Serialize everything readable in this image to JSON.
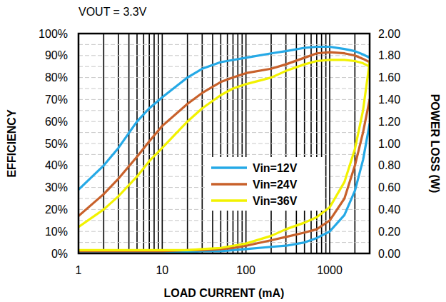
{
  "chart_data": {
    "type": "line",
    "title": "VOUT = 3.3V",
    "x_label": "LOAD CURRENT  (mA)",
    "y_label": "EFFICIENCY",
    "y2_label": "POWER LOSS (W)",
    "log": "x",
    "grid": true,
    "legend": "center",
    "x": [
      1,
      2,
      3,
      5,
      7,
      10,
      20,
      30,
      50,
      70,
      100,
      200,
      300,
      500,
      700,
      1000,
      1500,
      2000,
      2500,
      3000
    ],
    "xlim": [
      1,
      3000
    ],
    "xticks": [
      1,
      10,
      100,
      1000
    ],
    "ylim": [
      0,
      100
    ],
    "yticks": [
      {
        "value": 0,
        "label": "0%"
      },
      {
        "value": 10,
        "label": "10%"
      },
      {
        "value": 20,
        "label": "20%"
      },
      {
        "value": 30,
        "label": "30%"
      },
      {
        "value": 40,
        "label": "40%"
      },
      {
        "value": 50,
        "label": "50%"
      },
      {
        "value": 60,
        "label": "60%"
      },
      {
        "value": 70,
        "label": "70%"
      },
      {
        "value": 80,
        "label": "80%"
      },
      {
        "value": 90,
        "label": "90%"
      },
      {
        "value": 100,
        "label": "100%"
      }
    ],
    "y2lim": [
      0,
      2
    ],
    "y2ticks": [
      {
        "value": 0,
        "label": "0.00"
      },
      {
        "value": 0.2,
        "label": "0.20"
      },
      {
        "value": 0.4,
        "label": "0.40"
      },
      {
        "value": 0.6,
        "label": "0.60"
      },
      {
        "value": 0.8,
        "label": "0.80"
      },
      {
        "value": 1,
        "label": "1.00"
      },
      {
        "value": 1.2,
        "label": "1.20"
      },
      {
        "value": 1.4,
        "label": "1.40"
      },
      {
        "value": 1.6,
        "label": "1.60"
      },
      {
        "value": 1.8,
        "label": "1.80"
      },
      {
        "value": 2,
        "label": "2.00"
      }
    ],
    "series": [
      {
        "name": "Vin=12V",
        "color": "#25a9e6",
        "values": [
          29,
          40,
          48,
          60,
          66,
          71,
          80,
          84,
          87,
          88,
          89,
          91,
          92,
          93.5,
          94,
          94,
          93,
          92,
          90.5,
          89
        ]
      },
      {
        "name": "Vin=24V",
        "color": "#c8612b",
        "values": [
          17,
          27,
          34,
          44,
          51,
          58,
          68,
          73,
          78,
          80,
          82,
          84,
          86,
          89,
          91,
          91.5,
          91,
          90,
          88.5,
          87
        ]
      },
      {
        "name": "Vin=36V",
        "color": "#f2f200",
        "values": [
          12,
          20,
          26,
          35,
          42,
          48,
          60,
          66,
          72,
          75,
          77,
          80,
          83,
          86,
          87.5,
          88,
          88,
          87.5,
          86.5,
          85
        ]
      },
      {
        "name": "Vin=12V",
        "color": "#25a9e6",
        "axis": "y2",
        "values": [
          0.01,
          0.01,
          0.01,
          0.01,
          0.01,
          0.01,
          0.01,
          0.02,
          0.02,
          0.03,
          0.04,
          0.06,
          0.07,
          0.1,
          0.14,
          0.2,
          0.35,
          0.57,
          0.85,
          1.18
        ]
      },
      {
        "name": "Vin=24V",
        "color": "#c8612b",
        "axis": "y2",
        "values": [
          0.02,
          0.02,
          0.02,
          0.02,
          0.02,
          0.02,
          0.03,
          0.03,
          0.04,
          0.05,
          0.07,
          0.12,
          0.15,
          0.19,
          0.22,
          0.3,
          0.5,
          0.8,
          1.1,
          1.4
        ]
      },
      {
        "name": "Vin=36V",
        "color": "#f2f200",
        "axis": "y2",
        "values": [
          0.03,
          0.03,
          0.03,
          0.03,
          0.03,
          0.03,
          0.03,
          0.04,
          0.05,
          0.07,
          0.09,
          0.16,
          0.22,
          0.28,
          0.33,
          0.42,
          0.65,
          0.95,
          1.3,
          1.74
        ]
      }
    ]
  }
}
